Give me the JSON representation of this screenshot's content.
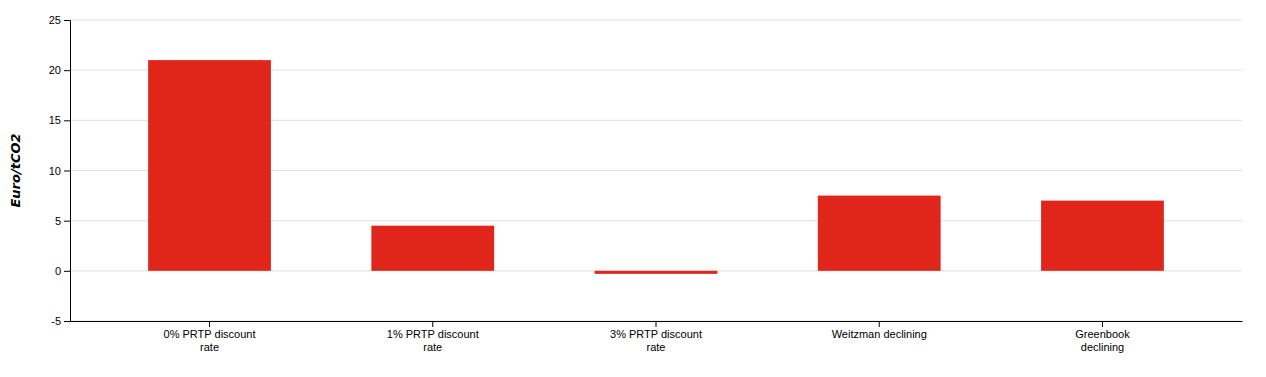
{
  "chart_data": {
    "type": "bar",
    "categories": [
      "0% PRTP discount\nrate",
      "1% PRTP discount\nrate",
      "3% PRTP discount\nrate",
      "Weitzman declining",
      "Greenbook\ndeclining"
    ],
    "values": [
      21.0,
      4.5,
      -0.3,
      7.5,
      7.0
    ],
    "color": "#e0261a",
    "ylabel": "Euro/tCO2",
    "ylim": [
      -5,
      25
    ],
    "yticks": [
      -5,
      0,
      5,
      10,
      15,
      20,
      25
    ],
    "grid": true
  }
}
